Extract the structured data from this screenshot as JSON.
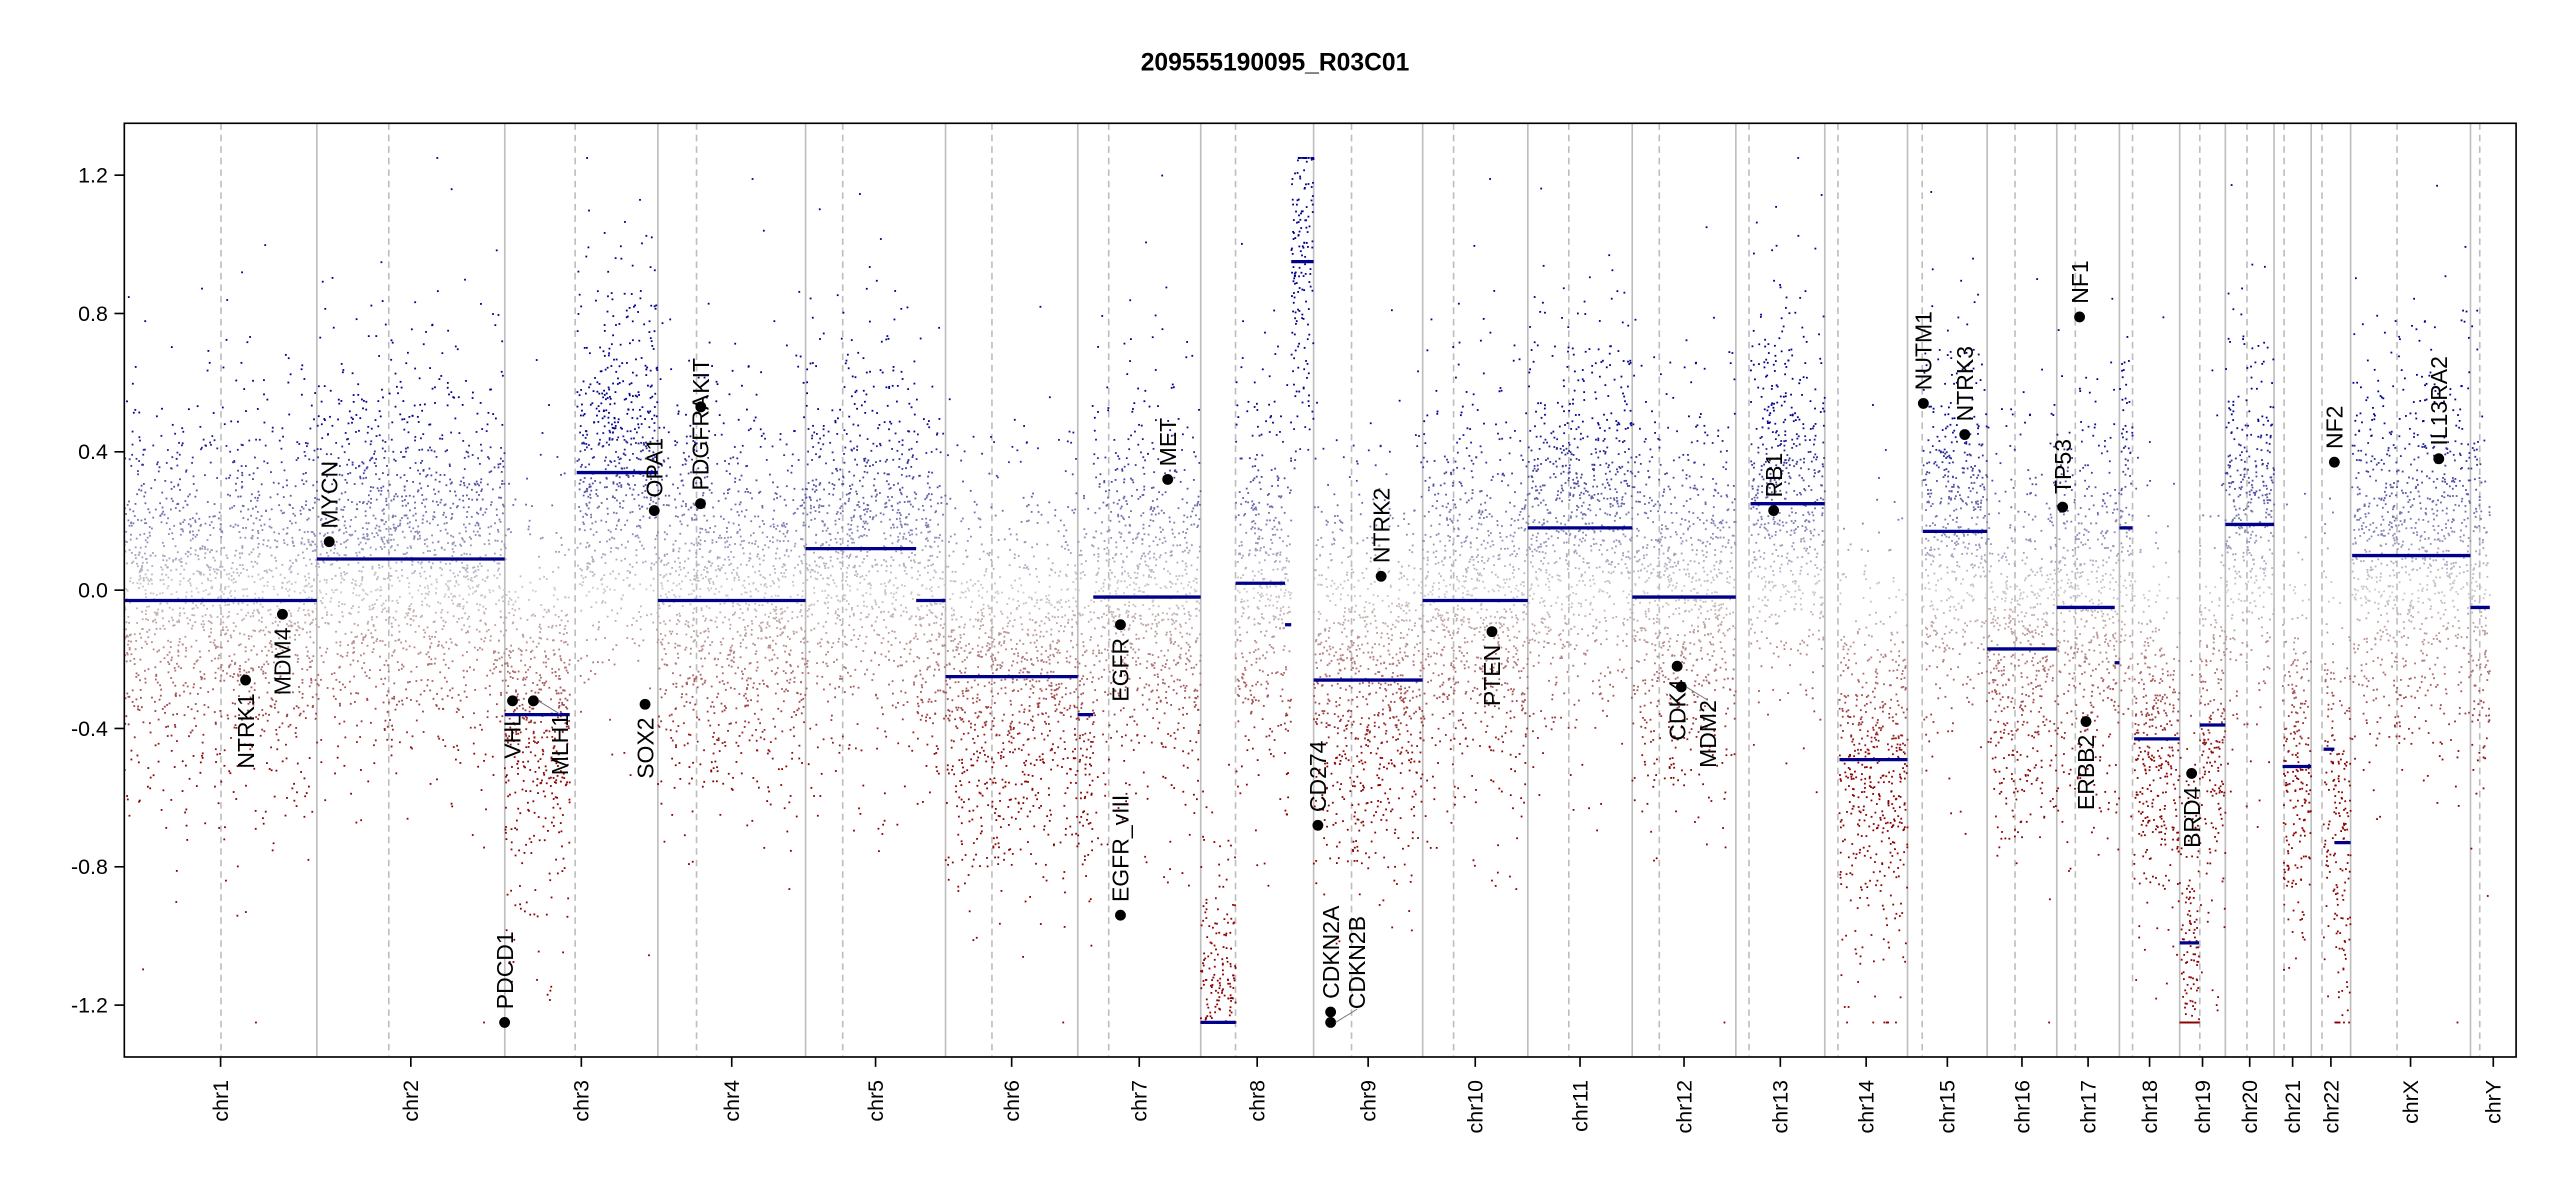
{
  "title": "209555190095_R03C01",
  "chart_data": {
    "type": "scatter",
    "title": "209555190095_R03C01",
    "xlabel": "",
    "ylabel": "",
    "ylim": [
      -1.35,
      1.35
    ],
    "clip": 1.25,
    "yticks": [
      -1.2,
      -0.8,
      -0.4,
      0.0,
      0.4,
      0.8,
      1.2
    ],
    "ytick_labels": [
      "-1.2",
      "-0.8",
      "-0.4",
      "0.0",
      "0.4",
      "0.8",
      "1.2"
    ],
    "grid": false,
    "colors": {
      "gain": "#00008b",
      "neutral": "#cccccc",
      "loss": "#8b0000",
      "segment": "#00008b",
      "chrom_line": "#bebebe",
      "gene_point": "#000000"
    },
    "chromosomes": [
      {
        "name": "chr1",
        "length": 249,
        "centromere": 125
      },
      {
        "name": "chr2",
        "length": 243,
        "centromere": 93
      },
      {
        "name": "chr3",
        "length": 198,
        "centromere": 91
      },
      {
        "name": "chr4",
        "length": 191,
        "centromere": 50
      },
      {
        "name": "chr5",
        "length": 181,
        "centromere": 48
      },
      {
        "name": "chr6",
        "length": 171,
        "centromere": 60
      },
      {
        "name": "chr7",
        "length": 159,
        "centromere": 40
      },
      {
        "name": "chr8",
        "length": 146,
        "centromere": 45
      },
      {
        "name": "chr9",
        "length": 141,
        "centromere": 49
      },
      {
        "name": "chr10",
        "length": 136,
        "centromere": 40
      },
      {
        "name": "chr11",
        "length": 135,
        "centromere": 53
      },
      {
        "name": "chr12",
        "length": 134,
        "centromere": 35
      },
      {
        "name": "chr13",
        "length": 115,
        "centromere": 17
      },
      {
        "name": "chr14",
        "length": 107,
        "centromere": 17
      },
      {
        "name": "chr15",
        "length": 103,
        "centromere": 19
      },
      {
        "name": "chr16",
        "length": 90,
        "centromere": 36
      },
      {
        "name": "chr17",
        "length": 81,
        "centromere": 24
      },
      {
        "name": "chr18",
        "length": 78,
        "centromere": 17
      },
      {
        "name": "chr19",
        "length": 59,
        "centromere": 26
      },
      {
        "name": "chr20",
        "length": 63,
        "centromere": 28
      },
      {
        "name": "chr21",
        "length": 48,
        "centromere": 13
      },
      {
        "name": "chr22",
        "length": 51,
        "centromere": 14
      },
      {
        "name": "chrX",
        "length": 155,
        "centromere": 60
      },
      {
        "name": "chrY",
        "length": 59,
        "centromere": 12
      }
    ],
    "segments": [
      {
        "chr": "chr1",
        "start": 0,
        "end": 249,
        "value": -0.03
      },
      {
        "chr": "chr2",
        "start": 0,
        "end": 243,
        "value": 0.09
      },
      {
        "chr": "chr3",
        "start": 0,
        "end": 84,
        "value": -0.36
      },
      {
        "chr": "chr3",
        "start": 93,
        "end": 198,
        "value": 0.34
      },
      {
        "chr": "chr4",
        "start": 0,
        "end": 191,
        "value": -0.03
      },
      {
        "chr": "chr5",
        "start": 0,
        "end": 143,
        "value": 0.12
      },
      {
        "chr": "chr5",
        "start": 143,
        "end": 181,
        "value": -0.03
      },
      {
        "chr": "chr6",
        "start": 0,
        "end": 171,
        "value": -0.25
      },
      {
        "chr": "chr7",
        "start": 0,
        "end": 20,
        "value": -0.36
      },
      {
        "chr": "chr7",
        "start": 20,
        "end": 159,
        "value": -0.02
      },
      {
        "chr": "chr8",
        "start": 0,
        "end": 45,
        "value": -1.25
      },
      {
        "chr": "chr8",
        "start": 45,
        "end": 109,
        "value": 0.02
      },
      {
        "chr": "chr8",
        "start": 109,
        "end": 117,
        "value": -0.1
      },
      {
        "chr": "chr8",
        "start": 117,
        "end": 146,
        "value": 0.95
      },
      {
        "chr": "chr9",
        "start": 0,
        "end": 141,
        "value": -0.26
      },
      {
        "chr": "chr10",
        "start": 0,
        "end": 136,
        "value": -0.03
      },
      {
        "chr": "chr11",
        "start": 0,
        "end": 135,
        "value": 0.18
      },
      {
        "chr": "chr12",
        "start": 0,
        "end": 134,
        "value": -0.02
      },
      {
        "chr": "chr13",
        "start": 19,
        "end": 115,
        "value": 0.25
      },
      {
        "chr": "chr14",
        "start": 19,
        "end": 107,
        "value": -0.49
      },
      {
        "chr": "chr15",
        "start": 20,
        "end": 103,
        "value": 0.17
      },
      {
        "chr": "chr16",
        "start": 0,
        "end": 90,
        "value": -0.17
      },
      {
        "chr": "chr17",
        "start": 0,
        "end": 75,
        "value": -0.05
      },
      {
        "chr": "chr17",
        "start": 75,
        "end": 81,
        "value": -0.21
      },
      {
        "chr": "chr18",
        "start": 0,
        "end": 17,
        "value": 0.18
      },
      {
        "chr": "chr18",
        "start": 19,
        "end": 78,
        "value": -0.43
      },
      {
        "chr": "chr19",
        "start": 0,
        "end": 25,
        "value": -1.02
      },
      {
        "chr": "chr19",
        "start": 26,
        "end": 59,
        "value": -0.39
      },
      {
        "chr": "chr20",
        "start": 0,
        "end": 63,
        "value": 0.19
      },
      {
        "chr": "chr21",
        "start": 11,
        "end": 48,
        "value": -0.51
      },
      {
        "chr": "chr22",
        "start": 16,
        "end": 30,
        "value": -0.46
      },
      {
        "chr": "chr22",
        "start": 30,
        "end": 51,
        "value": -0.73
      },
      {
        "chr": "chrX",
        "start": 2,
        "end": 155,
        "value": 0.1
      },
      {
        "chr": "chrY",
        "start": 0,
        "end": 25,
        "value": -0.05
      }
    ],
    "genes": [
      {
        "name": "NTRK1",
        "chr": "chr1",
        "pos": 156.8,
        "value": -0.26,
        "label_side": "below"
      },
      {
        "name": "MDM4",
        "chr": "chr1",
        "pos": 204.5,
        "value": -0.07,
        "label_side": "below"
      },
      {
        "name": "MYCN",
        "chr": "chr2",
        "pos": 16,
        "value": 0.14,
        "label_side": "above"
      },
      {
        "name": "PDCD1",
        "chr": "chr2",
        "pos": 242.8,
        "value": -1.25,
        "label_side": "above"
      },
      {
        "name": "VHL",
        "chr": "chr3",
        "pos": 10,
        "value": -0.32,
        "label_side": "below"
      },
      {
        "name": "MLH1",
        "chr": "chr3",
        "pos": 37,
        "value": -0.32,
        "label_side": "below"
      },
      {
        "name": "SOX2",
        "chr": "chr3",
        "pos": 181.4,
        "value": -0.33,
        "label_side": "below"
      },
      {
        "name": "OPA1",
        "chr": "chr3",
        "pos": 193.3,
        "value": 0.23,
        "label_side": "above"
      },
      {
        "name": "PDGFRA",
        "chr": "chr4",
        "pos": 55.1,
        "value": 0.25,
        "label_side": "above"
      },
      {
        "name": "KIT",
        "chr": "chr4",
        "pos": 55.5,
        "value": 0.53,
        "label_side": "above"
      },
      {
        "name": "EGFR",
        "chr": "chr7",
        "pos": 55.2,
        "value": -0.1,
        "label_side": "below"
      },
      {
        "name": "EGFR_vIII",
        "chr": "chr7",
        "pos": 55.2,
        "value": -0.94,
        "label_side": "above"
      },
      {
        "name": "MET",
        "chr": "chr7",
        "pos": 116.3,
        "value": 0.32,
        "label_side": "above"
      },
      {
        "name": "CD274",
        "chr": "chr9",
        "pos": 5.5,
        "value": -0.68,
        "label_side": "above"
      },
      {
        "name": "CDKN2A",
        "chr": "chr9",
        "pos": 21.97,
        "value": -1.22,
        "label_side": "above"
      },
      {
        "name": "CDKN2B",
        "chr": "chr9",
        "pos": 22.0,
        "value": -1.25,
        "label_side": "above"
      },
      {
        "name": "NTRK2",
        "chr": "chr9",
        "pos": 87.3,
        "value": 0.04,
        "label_side": "above"
      },
      {
        "name": "PTEN",
        "chr": "chr10",
        "pos": 89.6,
        "value": -0.12,
        "label_side": "below"
      },
      {
        "name": "CDK4",
        "chr": "chr12",
        "pos": 58.1,
        "value": -0.22,
        "label_side": "below"
      },
      {
        "name": "MDM2",
        "chr": "chr12",
        "pos": 63.5,
        "value": -0.28,
        "label_side": "below"
      },
      {
        "name": "RB1",
        "chr": "chr13",
        "pos": 48.9,
        "value": 0.23,
        "label_side": "above"
      },
      {
        "name": "NUTM1",
        "chr": "chr15",
        "pos": 20.5,
        "value": 0.54,
        "label_side": "above"
      },
      {
        "name": "NTRK3",
        "chr": "chr15",
        "pos": 74,
        "value": 0.45,
        "label_side": "above"
      },
      {
        "name": "TP53",
        "chr": "chr17",
        "pos": 7.6,
        "value": 0.24,
        "label_side": "above"
      },
      {
        "name": "NF1",
        "chr": "chr17",
        "pos": 29.5,
        "value": 0.79,
        "label_side": "above"
      },
      {
        "name": "ERBB2",
        "chr": "chr17",
        "pos": 37.8,
        "value": -0.38,
        "label_side": "below"
      },
      {
        "name": "BRD4",
        "chr": "chr19",
        "pos": 15.4,
        "value": -0.53,
        "label_side": "below"
      },
      {
        "name": "NF2",
        "chr": "chr22",
        "pos": 30,
        "value": 0.37,
        "label_side": "above"
      },
      {
        "name": "IL13RA2",
        "chr": "chrX",
        "pos": 114,
        "value": 0.38,
        "label_side": "above"
      }
    ]
  }
}
